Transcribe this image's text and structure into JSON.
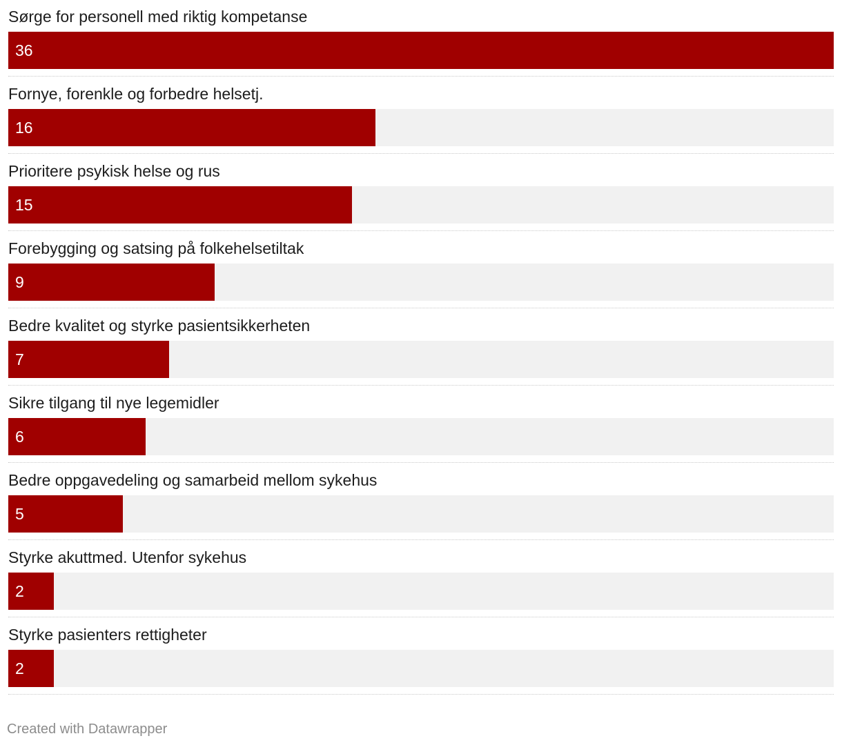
{
  "chart_data": {
    "type": "bar",
    "orientation": "horizontal",
    "categories": [
      "Sørge for personell med riktig kompetanse",
      "Fornye, forenkle og forbedre helsetj.",
      "Prioritere psykisk helse og rus",
      "Forebygging og satsing på folkehelsetiltak",
      "Bedre kvalitet og styrke pasientsikkerheten",
      "Sikre tilgang til nye legemidler",
      "Bedre oppgavedeling og samarbeid mellom sykehus",
      "Styrke akuttmed. Utenfor sykehus",
      "Styrke pasienters rettigheter"
    ],
    "values": [
      36,
      16,
      15,
      9,
      7,
      6,
      5,
      2,
      2
    ],
    "xlim": [
      0,
      36
    ],
    "bar_color": "#a00000",
    "track_color": "#f1f1f1",
    "grid": false,
    "legend": "none"
  },
  "footer": {
    "credit": "Created with Datawrapper"
  }
}
